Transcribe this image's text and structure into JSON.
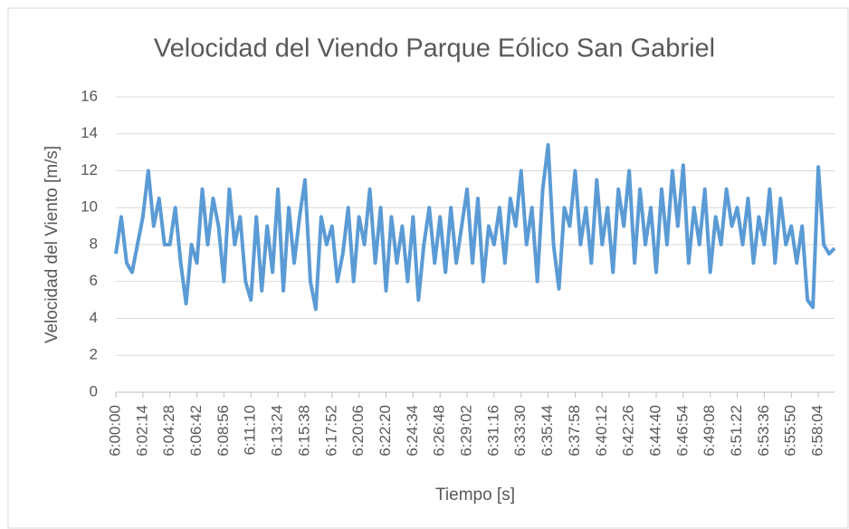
{
  "chart_data": {
    "type": "line",
    "title": "Velocidad del Viendo Parque Eólico San Gabriel",
    "xlabel": "Tiempo [s]",
    "ylabel": "Velocidad del Viento [m/s]",
    "categories": [
      "6:00:00",
      null,
      null,
      null,
      null,
      "6:02:14",
      null,
      null,
      null,
      null,
      "6:04:28",
      null,
      null,
      null,
      null,
      "6:06:42",
      null,
      null,
      null,
      null,
      "6:08:56",
      null,
      null,
      null,
      null,
      "6:11:10",
      null,
      null,
      null,
      null,
      "6:13:24",
      null,
      null,
      null,
      null,
      "6:15:38",
      null,
      null,
      null,
      null,
      "6:17:52",
      null,
      null,
      null,
      null,
      "6:20:06",
      null,
      null,
      null,
      null,
      "6:22:20",
      null,
      null,
      null,
      null,
      "6:24:34",
      null,
      null,
      null,
      null,
      "6:26:48",
      null,
      null,
      null,
      null,
      "6:29:02",
      null,
      null,
      null,
      null,
      "6:31:16",
      null,
      null,
      null,
      null,
      "6:33:30",
      null,
      null,
      null,
      null,
      "6:35:44",
      null,
      null,
      null,
      null,
      "6:37:58",
      null,
      null,
      null,
      null,
      "6:40:12",
      null,
      null,
      null,
      null,
      "6:42:26",
      null,
      null,
      null,
      null,
      "6:44:40",
      null,
      null,
      null,
      null,
      "6:46:54",
      null,
      null,
      null,
      null,
      "6:49:08",
      null,
      null,
      null,
      null,
      "6:51:22",
      null,
      null,
      null,
      null,
      "6:53:36",
      null,
      null,
      null,
      null,
      "6:55:50",
      null,
      null,
      null,
      null,
      "6:58:04",
      null,
      null,
      null
    ],
    "values": [
      7.5,
      9.5,
      7,
      6.5,
      8,
      9.5,
      12,
      9,
      10.5,
      8,
      8,
      10,
      7,
      4.8,
      8,
      7,
      11,
      8,
      10.5,
      9,
      6,
      11,
      8,
      9.5,
      6,
      5,
      9.5,
      5.5,
      9,
      6.5,
      11,
      5.5,
      10,
      7,
      9.5,
      11.5,
      6,
      4.5,
      9.5,
      8,
      9,
      6,
      7.5,
      10,
      6,
      9.5,
      8,
      11,
      7,
      10,
      5.5,
      9.5,
      7,
      9,
      6,
      9.5,
      5,
      8,
      10,
      7,
      9.5,
      6.5,
      10,
      7,
      9,
      11,
      7,
      10.5,
      6,
      9,
      8,
      10,
      7,
      10.5,
      9,
      12,
      8,
      10,
      6,
      11,
      13.4,
      8,
      5.6,
      10,
      9,
      12,
      8,
      10,
      7,
      11.5,
      8,
      10,
      6.5,
      11,
      9,
      12,
      7,
      11,
      8,
      10,
      6.5,
      11,
      8,
      12,
      9,
      12.3,
      7,
      10,
      8,
      11,
      6.5,
      9.5,
      8,
      11,
      9,
      10,
      8,
      10.5,
      7,
      9.5,
      8,
      11,
      7,
      10.5,
      8,
      9,
      7,
      9,
      5,
      4.6,
      12.2,
      8,
      7.5,
      7.8
    ],
    "color": "#5b9bd5",
    "ylim": [
      0,
      16
    ],
    "yticks": [
      0,
      2,
      4,
      6,
      8,
      10,
      12,
      14,
      16
    ],
    "grid": true
  }
}
